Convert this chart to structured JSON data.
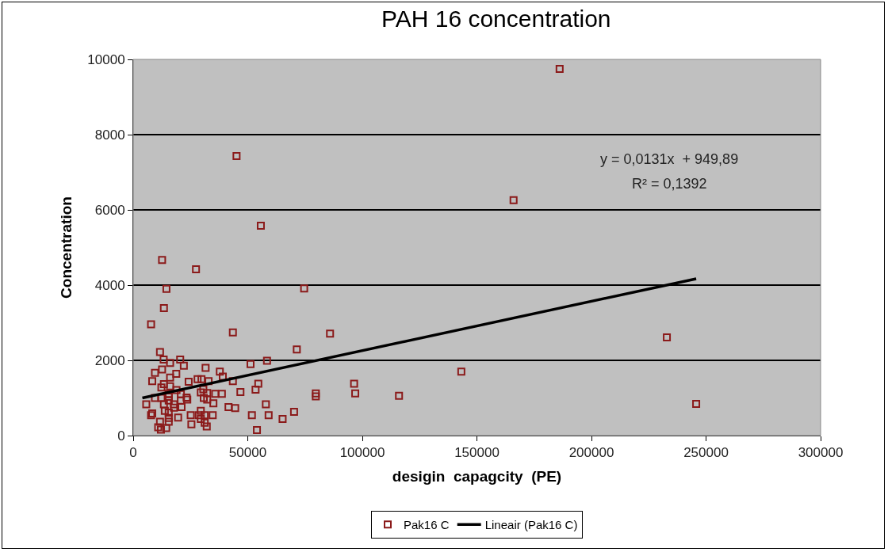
{
  "chart_data": {
    "type": "scatter",
    "title": "PAH 16 concentration",
    "xlabel": "desigin  capagcity  (PE)",
    "ylabel": "Concentration",
    "annotations": [
      "y = 0,0131x  + 949,89",
      "R² = 0,1392"
    ],
    "xlim": [
      0,
      300000
    ],
    "xticks": [
      0,
      50000,
      100000,
      150000,
      200000,
      250000,
      300000
    ],
    "ylim": [
      0,
      10000
    ],
    "yticks": [
      0,
      2000,
      4000,
      6000,
      8000,
      10000
    ],
    "grid": "y",
    "legend": "bottom",
    "marker": "square",
    "series": [
      {
        "name": "Pak16 C",
        "color": "#8b1a1a",
        "x": [
          186100,
          166000,
          232900,
          245700,
          143200,
          116000,
          45100,
          55700,
          12600,
          74600,
          85900,
          71400,
          51200,
          58400,
          54600,
          53400,
          46800,
          96400,
          96900,
          79700,
          79700,
          57900,
          51800,
          59100,
          70200,
          65200,
          54000,
          27400,
          14500,
          13400,
          7800,
          43500,
          11700,
          13300,
          16100,
          20500,
          22100,
          12600,
          31600,
          9500,
          37800,
          18800,
          39100,
          16100,
          28100,
          29800,
          8300,
          24200,
          32900,
          43500,
          13400,
          16100,
          12300,
          18900,
          30600,
          15500,
          20800,
          29500,
          32300,
          35800,
          38700,
          9500,
          12300,
          15500,
          23300,
          23600,
          30800,
          32300,
          20800,
          15500,
          5700,
          13400,
          17800,
          35000,
          41600,
          44500,
          21100,
          17800,
          13800,
          15500,
          8300,
          7800,
          29500,
          25100,
          28600,
          31200,
          34700,
          19600,
          15500,
          29500,
          11700,
          15500,
          25400,
          31200,
          32100,
          10900,
          14400,
          12100
        ],
        "values": [
          9750,
          6260,
          2610,
          840,
          1700,
          1060,
          7430,
          5580,
          4670,
          3910,
          2710,
          2290,
          1900,
          1990,
          1380,
          1220,
          1160,
          1380,
          1120,
          1120,
          1040,
          830,
          540,
          540,
          630,
          440,
          150,
          4420,
          3900,
          3390,
          2960,
          2740,
          2220,
          2020,
          1930,
          2020,
          1860,
          1760,
          1800,
          1670,
          1700,
          1640,
          1570,
          1540,
          1500,
          1500,
          1450,
          1430,
          1450,
          1450,
          1370,
          1310,
          1280,
          1210,
          1230,
          1110,
          1100,
          1150,
          1130,
          1110,
          1110,
          1000,
          1000,
          1030,
          1010,
          960,
          1000,
          960,
          930,
          930,
          830,
          830,
          830,
          860,
          760,
          730,
          760,
          740,
          660,
          610,
          590,
          540,
          660,
          540,
          540,
          540,
          540,
          480,
          470,
          440,
          370,
          370,
          300,
          340,
          240,
          220,
          200,
          160
        ]
      },
      {
        "name": "Lineair (Pak16 C)",
        "type": "line",
        "marker": "none",
        "color": "#000000",
        "x": [
          4000,
          245700
        ],
        "values": [
          1000,
          4170
        ]
      }
    ]
  }
}
